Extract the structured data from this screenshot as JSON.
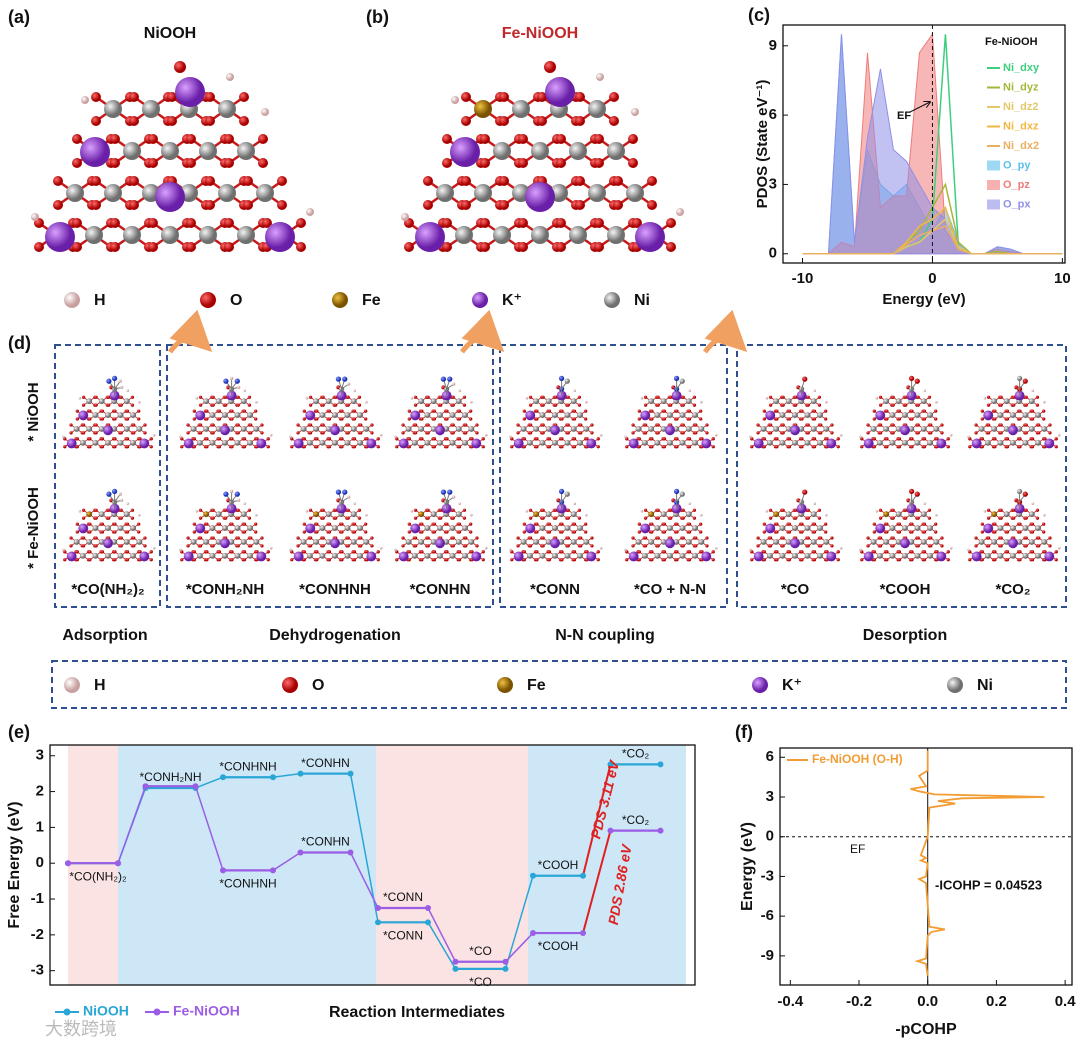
{
  "panels": {
    "a": {
      "label": "(a)",
      "title": "NiOOH"
    },
    "b": {
      "label": "(b)",
      "title": "Fe-NiOOH"
    },
    "c": {
      "label": "(c)"
    },
    "d": {
      "label": "(d)",
      "rows": [
        "* NiOOH",
        "* Fe-NiOOH"
      ],
      "captions": [
        "*CO(NH₂)₂",
        "*CONH₂NH",
        "*CONHNH",
        "*CONHN",
        "*CONN",
        "*CO + N-N",
        "*CO",
        "*COOH",
        "*CO₂"
      ],
      "stages": [
        "Adsorption",
        "Dehydrogenation",
        "N-N coupling",
        "Desorption"
      ]
    },
    "e": {
      "label": "(e)"
    },
    "f": {
      "label": "(f)"
    }
  },
  "atom_legend": [
    "H",
    "O",
    "Fe",
    "K⁺",
    "Ni"
  ],
  "watermark": "大数跨境",
  "chart_data": [
    {
      "type": "area",
      "xlabel": "Energy (eV)",
      "ylabel": "PDOS (State eV⁻¹)",
      "legend_title": "Fe-NiOOH",
      "annotations": [
        "EF"
      ],
      "x": [
        -10,
        -9,
        -8,
        -7,
        -6,
        -5,
        -4,
        -3,
        -2,
        -1,
        0,
        1,
        2,
        3,
        4,
        5,
        6,
        7,
        8,
        9,
        10
      ],
      "xlim": [
        -11.5,
        10.2
      ],
      "xticks": [
        -10,
        0,
        10
      ],
      "ylim": [
        -0.4,
        9.9
      ],
      "yticks": [
        0,
        3,
        6,
        9
      ],
      "series": [
        {
          "name": "O_py",
          "color": "#5bc0eb",
          "values": [
            0,
            0,
            0,
            9.5,
            0.5,
            4.5,
            3,
            2.5,
            3,
            2,
            1,
            2,
            0.5,
            0,
            0,
            0.3,
            0.2,
            0,
            0,
            0,
            0
          ]
        },
        {
          "name": "O_pz",
          "color": "#f07b7b",
          "values": [
            0,
            0,
            0,
            0.5,
            0.3,
            8.7,
            2,
            2.5,
            2.5,
            8.7,
            9.5,
            1,
            0.3,
            0,
            0,
            0.2,
            0.1,
            0,
            0,
            0,
            0
          ]
        },
        {
          "name": "O_px",
          "color": "#8f8fe8",
          "values": [
            0,
            0,
            0,
            9.5,
            0.5,
            5,
            8,
            4.5,
            4,
            3,
            2,
            1.5,
            0.5,
            0,
            0,
            0.3,
            0.2,
            0,
            0,
            0,
            0
          ]
        },
        {
          "name": "Ni_dxy",
          "color": "#3ecf7e",
          "values": [
            0,
            0,
            0,
            0,
            0,
            0,
            0,
            0,
            0.3,
            0.5,
            1.5,
            9.5,
            0.3,
            0,
            0,
            0,
            0,
            0,
            0,
            0,
            0
          ]
        },
        {
          "name": "Ni_dyz",
          "color": "#a3b83a",
          "values": [
            0,
            0,
            0,
            0,
            0,
            0,
            0,
            0,
            0.5,
            1,
            2,
            3,
            0.5,
            0,
            0,
            0.1,
            0,
            0,
            0,
            0,
            0
          ]
        },
        {
          "name": "Ni_dz2",
          "color": "#e3c86a",
          "values": [
            0,
            0,
            0,
            0,
            0,
            0,
            0,
            0,
            0.3,
            0.5,
            1,
            1.5,
            0.3,
            0,
            0,
            0,
            0,
            0,
            0,
            0,
            0
          ]
        },
        {
          "name": "Ni_dxz",
          "color": "#f0b840",
          "values": [
            0,
            0,
            0,
            0,
            0,
            0,
            0,
            0,
            0.5,
            1.2,
            1.5,
            2,
            0.2,
            0,
            0,
            0,
            0,
            0,
            0,
            0,
            0
          ]
        },
        {
          "name": "Ni_dx2",
          "color": "#e8b060",
          "values": [
            0,
            0,
            0,
            0,
            0,
            0,
            0,
            0,
            0.4,
            0.8,
            1,
            1.2,
            0.2,
            0,
            0,
            0,
            0,
            0,
            0,
            0,
            0
          ]
        }
      ]
    },
    {
      "type": "energy-levels",
      "ylabel": "Free Energy (eV)",
      "xlabel": "Reaction Intermediates",
      "categories": [
        null,
        null,
        null,
        null,
        null,
        null,
        null,
        null
      ],
      "ylim": [
        -3.4,
        3.3
      ],
      "yticks": [
        -3,
        -2,
        -1,
        0,
        1,
        2,
        3
      ],
      "annotations": [
        "PDS 3.11 eV",
        "PDS 2.86 eV"
      ],
      "series": [
        {
          "name": "NiOOH",
          "color": "#2aa6d6",
          "values": [
            0,
            2.1,
            2.4,
            2.5,
            -1.65,
            -2.95,
            -0.35,
            2.76
          ],
          "point_labels": [
            "*CO(NH₂)₂",
            "*CONH₂NH",
            "*CONHNH",
            "*CONHN",
            "*CONN",
            "*CO",
            "*COOH",
            "*CO₂"
          ]
        },
        {
          "name": "Fe-NiOOH",
          "color": "#9b5de5",
          "values": [
            0,
            2.15,
            -0.2,
            0.3,
            -1.25,
            -2.75,
            -1.95,
            0.91
          ],
          "point_labels": [
            null,
            null,
            "*CONHNH",
            "*CONHN",
            "*CONN",
            "*CO",
            "*COOH",
            "*CO₂"
          ]
        }
      ]
    },
    {
      "type": "line",
      "xlabel": "-pCOHP",
      "ylabel": "Energy (eV)",
      "annotations": [
        "EF",
        "-ICOHP = 0.04523"
      ],
      "xlim": [
        -0.43,
        0.42
      ],
      "xticks": [
        -0.4,
        -0.2,
        {
          "value": 0,
          "label": "0.0"
        },
        0.2,
        0.4
      ],
      "ylim": [
        -11.2,
        6.7
      ],
      "yticks": [
        -9,
        -6,
        -3,
        0,
        3,
        6
      ],
      "y": [
        -10.5,
        -9.6,
        -9.4,
        -9.2,
        -7.5,
        -7.2,
        -7,
        -6.8,
        -3.5,
        -3.2,
        -3,
        -2,
        -1.8,
        -1.6,
        -1.4,
        0,
        2.2,
        2.5,
        2.7,
        2.9,
        3,
        3.2,
        3.4,
        3.6,
        3.8,
        4.4,
        4.6,
        5,
        6.5
      ],
      "series": [
        {
          "name": "Fe-NiOOH (O-H)",
          "color": "#f39c33",
          "values": [
            0,
            -0.005,
            -0.03,
            -0.005,
            0,
            0.01,
            0.05,
            0.005,
            -0.005,
            -0.025,
            -0.005,
            0,
            -0.02,
            -0.005,
            -0.02,
            0,
            0.005,
            0.08,
            0.03,
            0.1,
            0.34,
            0.02,
            -0.02,
            -0.05,
            -0.005,
            -0.02,
            -0.025,
            0,
            0
          ]
        }
      ]
    }
  ]
}
